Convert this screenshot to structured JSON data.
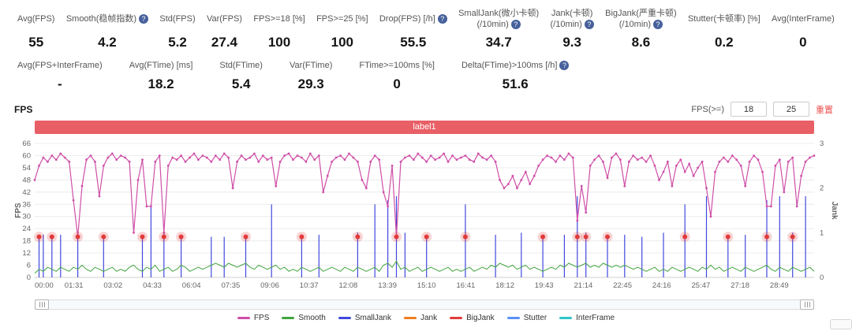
{
  "metrics_row1": [
    {
      "label": "Avg(FPS)",
      "value": "55"
    },
    {
      "label": "Smooth(稳帧指数)",
      "help": true,
      "value": "4.2"
    },
    {
      "label": "Std(FPS)",
      "value": "5.2"
    },
    {
      "label": "Var(FPS)",
      "value": "27.4"
    },
    {
      "label": "FPS>=18 [%]",
      "value": "100"
    },
    {
      "label": "FPS>=25 [%]",
      "value": "100"
    },
    {
      "label": "Drop(FPS) [/h]",
      "help": true,
      "value": "55.5"
    },
    {
      "label": "SmallJank(微小卡顿)",
      "label2": "(/10min)",
      "help": true,
      "value": "34.7"
    },
    {
      "label": "Jank(卡顿)",
      "label2": "(/10min)",
      "help": true,
      "value": "9.3"
    },
    {
      "label": "BigJank(严重卡顿)",
      "label2": "(/10min)",
      "help": true,
      "value": "8.6"
    },
    {
      "label": "Stutter(卡顿率) [%]",
      "value": "0.2"
    },
    {
      "label": "Avg(InterFrame)",
      "value": "0"
    }
  ],
  "metrics_row2": [
    {
      "label": "Avg(FPS+InterFrame)",
      "value": "-"
    },
    {
      "label": "Avg(FTime) [ms]",
      "value": "18.2"
    },
    {
      "label": "Std(FTime)",
      "value": "5.4"
    },
    {
      "label": "Var(FTime)",
      "value": "29.3"
    },
    {
      "label": "FTime>=100ms [%]",
      "value": "0"
    },
    {
      "label": "Delta(FTime)>100ms [/h]",
      "help": true,
      "value": "51.6"
    }
  ],
  "section": {
    "title": "FPS"
  },
  "controls": {
    "label": "FPS(>=)",
    "threshold1": "18",
    "threshold2": "25",
    "reset": "重置"
  },
  "banner": "label1",
  "colors": {
    "fps": "#cf4fa8",
    "smooth": "#43a43f",
    "smalljank": "#4149dd",
    "jank": "#ef7d20",
    "bigjank": "#e23a3a",
    "stutter": "#5b8ff9",
    "interframe": "#2ec7c9",
    "banner": "#e85f66",
    "reset": "#ee4f4f"
  },
  "legend": [
    {
      "label": "FPS",
      "color": "#cf4fa8"
    },
    {
      "label": "Smooth",
      "color": "#43a43f"
    },
    {
      "label": "SmallJank",
      "color": "#4149dd"
    },
    {
      "label": "Jank",
      "color": "#ef7d20"
    },
    {
      "label": "BigJank",
      "color": "#e23a3a"
    },
    {
      "label": "Stutter",
      "color": "#5b8ff9"
    },
    {
      "label": "InterFrame",
      "color": "#2ec7c9"
    }
  ],
  "chart_data": {
    "type": "line",
    "title": "label1",
    "x_ticks": [
      "00:00",
      "01:31",
      "03:02",
      "04:33",
      "06:04",
      "07:35",
      "09:06",
      "10:37",
      "12:08",
      "13:39",
      "15:10",
      "16:41",
      "18:12",
      "19:43",
      "21:14",
      "22:45",
      "24:16",
      "25:47",
      "27:18",
      "28:49"
    ],
    "tick_interval_s": 91,
    "sample_interval_s": 10,
    "total_duration_s": 1810,
    "y_left": {
      "label": "FPS",
      "min": 0,
      "max": 66,
      "step": 6
    },
    "y_right": {
      "label": "Jank",
      "min": 0,
      "max": 3,
      "step": 1
    },
    "series": {
      "fps": [
        48,
        55,
        59,
        57,
        60,
        58,
        61,
        59,
        57,
        38,
        20,
        45,
        58,
        60,
        57,
        40,
        55,
        59,
        61,
        58,
        60,
        59,
        57,
        22,
        48,
        58,
        35,
        35,
        57,
        60,
        22,
        55,
        59,
        58,
        60,
        57,
        59,
        61,
        58,
        60,
        59,
        57,
        60,
        58,
        61,
        59,
        44,
        57,
        60,
        58,
        59,
        61,
        57,
        60,
        58,
        59,
        45,
        57,
        60,
        61,
        58,
        60,
        59,
        57,
        61,
        58,
        60,
        42,
        50,
        57,
        59,
        60,
        58,
        61,
        59,
        57,
        48,
        44,
        57,
        60,
        58,
        42,
        35,
        55,
        20,
        57,
        59,
        60,
        58,
        61,
        59,
        57,
        60,
        58,
        59,
        61,
        57,
        60,
        58,
        59,
        60,
        58,
        57,
        61,
        59,
        58,
        60,
        57,
        48,
        44,
        46,
        50,
        44,
        48,
        52,
        46,
        50,
        55,
        58,
        60,
        59,
        57,
        60,
        58,
        61,
        59,
        28,
        45,
        32,
        55,
        58,
        60,
        57,
        49,
        59,
        61,
        58,
        45,
        57,
        60,
        58,
        59,
        57,
        60,
        55,
        48,
        52,
        57,
        45,
        55,
        58,
        52,
        56,
        50,
        54,
        57,
        44,
        30,
        52,
        57,
        59,
        57,
        60,
        58,
        55,
        45,
        57,
        60,
        58,
        52,
        35,
        35,
        55,
        58,
        42,
        57,
        59,
        35,
        50,
        57,
        59,
        60
      ],
      "smooth": [
        2,
        4,
        3,
        5,
        4,
        3,
        5,
        4,
        3,
        5,
        4,
        6,
        4,
        3,
        5,
        4,
        3,
        4,
        5,
        3,
        4,
        3,
        5,
        6,
        4,
        3,
        5,
        4,
        6,
        3,
        4,
        5,
        3,
        4,
        6,
        5,
        3,
        4,
        5,
        4,
        5,
        6,
        7,
        6,
        5,
        7,
        6,
        5,
        6,
        7,
        5,
        4,
        6,
        5,
        4,
        5,
        6,
        4,
        5,
        3,
        4,
        3,
        5,
        4,
        3,
        4,
        5,
        3,
        4,
        5,
        4,
        3,
        5,
        4,
        3,
        5,
        4,
        3,
        4,
        5,
        3,
        6,
        7,
        5,
        8,
        4,
        5,
        3,
        4,
        5,
        3,
        4,
        5,
        4,
        3,
        4,
        5,
        3,
        4,
        3,
        4,
        5,
        3,
        4,
        5,
        4,
        6,
        5,
        7,
        6,
        5,
        6,
        4,
        5,
        6,
        4,
        5,
        4,
        3,
        4,
        5,
        4,
        6,
        5,
        7,
        6,
        5,
        6,
        7,
        5,
        6,
        5,
        7,
        6,
        5,
        6,
        5,
        6,
        5,
        4,
        5,
        4,
        3,
        4,
        5,
        3,
        4,
        3,
        5,
        4,
        3,
        4,
        5,
        4,
        3,
        5,
        4,
        6,
        4,
        5,
        3,
        4,
        5,
        4,
        3,
        5,
        4,
        3,
        4,
        5,
        6,
        4,
        3,
        5,
        4,
        3,
        5,
        4,
        3,
        4,
        5,
        3
      ],
      "stutter_spikes": [
        [
          1,
          20
        ],
        [
          2,
          21
        ],
        [
          4,
          20
        ],
        [
          6,
          21
        ],
        [
          10,
          22
        ],
        [
          16,
          20
        ],
        [
          25,
          21
        ],
        [
          27,
          36
        ],
        [
          30,
          22
        ],
        [
          34,
          20
        ],
        [
          41,
          20
        ],
        [
          44,
          20
        ],
        [
          49,
          21
        ],
        [
          55,
          36
        ],
        [
          62,
          20
        ],
        [
          66,
          21
        ],
        [
          75,
          22
        ],
        [
          79,
          36
        ],
        [
          82,
          38
        ],
        [
          84,
          40
        ],
        [
          86,
          22
        ],
        [
          91,
          20
        ],
        [
          100,
          36
        ],
        [
          107,
          21
        ],
        [
          113,
          22
        ],
        [
          118,
          20
        ],
        [
          123,
          21
        ],
        [
          126,
          40
        ],
        [
          128,
          22
        ],
        [
          133,
          20
        ],
        [
          137,
          21
        ],
        [
          141,
          20
        ],
        [
          146,
          22
        ],
        [
          151,
          36
        ],
        [
          156,
          40
        ],
        [
          161,
          20
        ],
        [
          165,
          21
        ],
        [
          170,
          38
        ],
        [
          173,
          40
        ],
        [
          176,
          22
        ],
        [
          179,
          40
        ]
      ],
      "bigjank_events": [
        1,
        4,
        10,
        16,
        25,
        30,
        34,
        49,
        62,
        75,
        84,
        91,
        100,
        118,
        126,
        128,
        133,
        151,
        161,
        170,
        176
      ],
      "bigjank_value": 20
    }
  }
}
